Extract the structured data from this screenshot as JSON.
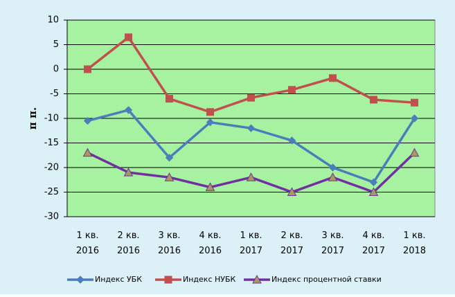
{
  "chart_data": {
    "type": "line",
    "y_label": "п п.",
    "categories": [
      "1 кв. 2016",
      "2 кв. 2016",
      "3 кв. 2016",
      "4 кв. 2016",
      "1 кв. 2017",
      "2 кв. 2017",
      "3 кв. 2017",
      "4 кв. 2017",
      "1 кв. 2018"
    ],
    "series": [
      {
        "name": "Индекс УБК",
        "color": "#4a7ebb",
        "marker": "diamond",
        "values": [
          -10.5,
          -8.3,
          -18,
          -10.8,
          -12,
          -14.5,
          -20,
          -23,
          -10
        ]
      },
      {
        "name": "Индекс НУБК",
        "color": "#c0504d",
        "marker": "square",
        "values": [
          0,
          6.5,
          -6,
          -8.7,
          -5.8,
          -4.2,
          -1.8,
          -6.2,
          -6.8
        ]
      },
      {
        "name": "Индекс процентной ставки",
        "color": "#7030a0",
        "marker": "triangle",
        "marker_fill": "#a89a5c",
        "values": [
          -17,
          -21,
          -22,
          -24,
          -22,
          -25,
          -22,
          -25,
          -17
        ]
      }
    ],
    "ylim": [
      -30,
      10
    ],
    "yticks": [
      -30,
      -25,
      -20,
      -15,
      -10,
      -5,
      0,
      5,
      10
    ],
    "grid": true,
    "plot_background": "#a6f2a0",
    "background": "#dcf0f7"
  }
}
